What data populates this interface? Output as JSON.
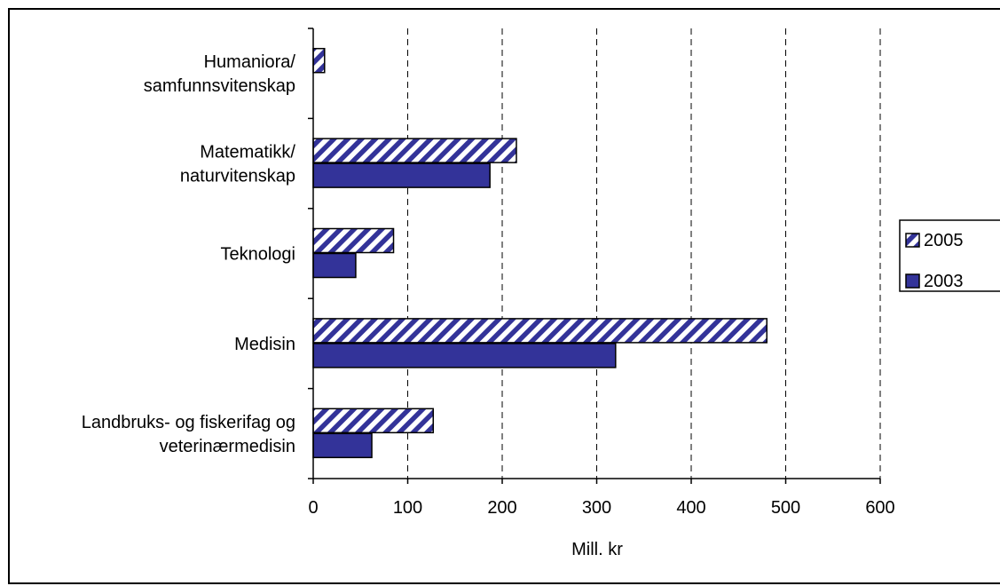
{
  "chart_data": {
    "type": "bar",
    "orientation": "horizontal",
    "categories": [
      [
        "Humaniora/",
        "samfunnsvitenskap"
      ],
      [
        "Matematikk/",
        "naturvitenskap"
      ],
      [
        "Teknologi"
      ],
      [
        "Medisin"
      ],
      [
        "Landbruks- og fiskerifag og",
        "veterinærmedisin"
      ]
    ],
    "series": [
      {
        "name": "2005",
        "values": [
          12,
          215,
          85,
          480,
          127
        ],
        "pattern": "diagonal-hatch",
        "color": "#333399"
      },
      {
        "name": "2003",
        "values": [
          0,
          187,
          45,
          320,
          62
        ],
        "pattern": "solid",
        "color": "#333399"
      }
    ],
    "xlabel": "Mill. kr",
    "ylabel": "",
    "xlim": [
      0,
      600
    ],
    "xticks": [
      0,
      100,
      200,
      300,
      400,
      500,
      600
    ],
    "grid": "vertical-dashed",
    "legend": {
      "placement": "right",
      "entries": [
        "2005",
        "2003"
      ]
    }
  }
}
